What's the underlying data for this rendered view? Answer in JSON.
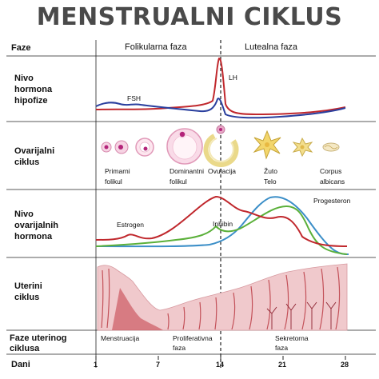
{
  "title": "MENSTRUALNI CIKLUS",
  "rows": {
    "faze": "Faze",
    "hipofiza": [
      "Nivo",
      "hormona",
      "hipofize"
    ],
    "ovarijalni": [
      "Ovarijalni",
      "ciklus"
    ],
    "ovarijalni_hormoni": [
      "Nivo",
      "ovarijalnih",
      "hormona"
    ],
    "uterini": [
      "Uterini",
      "ciklus"
    ],
    "faze_uterinog": [
      "Faze uterinog",
      "ciklusa"
    ],
    "dani": "Dani"
  },
  "phases": {
    "folikularna": "Folikularna faza",
    "lutealna": "Lutealna faza"
  },
  "hormones": {
    "fsh": "FSH",
    "lh": "LH",
    "estrogen": "Estrogen",
    "inhibin": "Inhibin",
    "progesteron": "Progesteron"
  },
  "ovarian_stages": {
    "primarni": [
      "Primarni",
      "folikul"
    ],
    "dominantni": [
      "Dominantni",
      "folikul"
    ],
    "ovulacija": "Ovulacija",
    "zuto_telo": [
      "Žuto",
      "Telo"
    ],
    "corpus": [
      "Corpus",
      "albicans"
    ]
  },
  "uterine_phases": {
    "menstruacija": "Menstruacija",
    "proliferativna": [
      "Proliferativna",
      "faza"
    ],
    "sekretorna": [
      "Sekretorna",
      "faza"
    ]
  },
  "days": [
    "1",
    "7",
    "14",
    "21",
    "28"
  ],
  "colors": {
    "red": "#c0282d",
    "blue": "#2a3f9e",
    "green": "#5bb03a",
    "lightblue": "#3c8fc8",
    "tissue": "#f0c9cc",
    "tissue_dark": "#b8343d"
  }
}
